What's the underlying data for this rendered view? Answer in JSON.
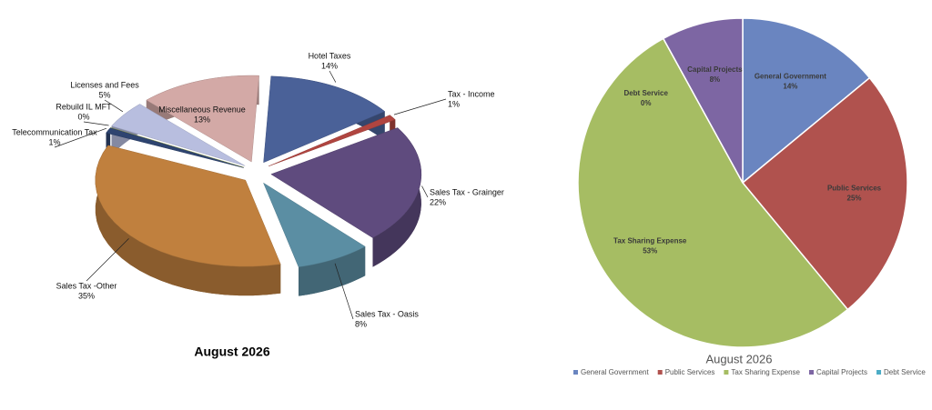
{
  "chart_data": [
    {
      "type": "pie3d",
      "title": "August 2026",
      "categories": [
        "Hotel Taxes",
        "Tax - Income",
        "Sales Tax - Grainger",
        "Sales Tax - Oasis",
        "Sales Tax -Other",
        "Telecommunication Tax",
        "Rebuild IL MFT",
        "Licenses and Fees",
        "Miscellaneous Revenue"
      ],
      "values": [
        14,
        1,
        22,
        8,
        35,
        1,
        0,
        5,
        13
      ],
      "value_labels": [
        "14%",
        "1%",
        "22%",
        "8%",
        "35%",
        "1%",
        "0%",
        "5%",
        "13%"
      ],
      "colors": [
        "#4a6198",
        "#b04540",
        "#5f4b7e",
        "#5b8ea3",
        "#c0803e",
        "#2e4470",
        "#9aab4e",
        "#b8bedf",
        "#d3a9a6"
      ]
    },
    {
      "type": "pie",
      "title": "August 2026",
      "categories": [
        "General Government",
        "Public Services",
        "Tax Sharing Expense",
        "Capital Projects",
        "Debt Service"
      ],
      "values": [
        14,
        25,
        53,
        8,
        0
      ],
      "value_labels": [
        "14%",
        "25%",
        "53%",
        "8%",
        "0%"
      ],
      "colors": [
        "#6a85c0",
        "#b0524e",
        "#a6bd63",
        "#7d66a3",
        "#4bacc6"
      ],
      "legend": "bottom"
    }
  ]
}
